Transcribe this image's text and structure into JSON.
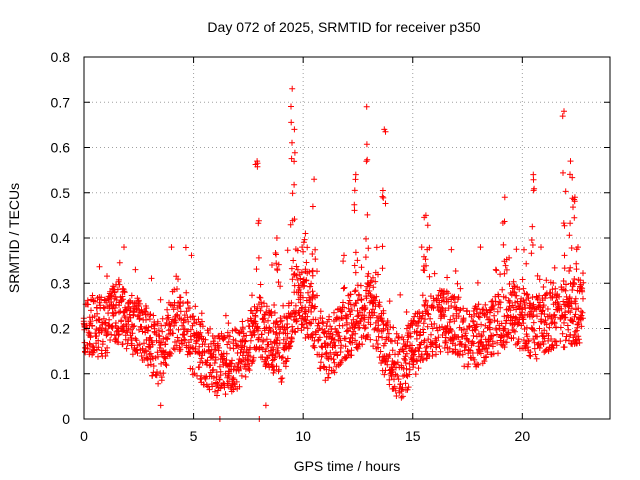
{
  "chart_data": {
    "type": "scatter",
    "title": "Day 072 of 2025, SRMTID for receiver p350",
    "xlabel": "GPS time / hours",
    "ylabel": "SRMTID / TECUs",
    "xlim": [
      0,
      24
    ],
    "ylim": [
      0,
      0.8
    ],
    "xticks": [
      0,
      5,
      10,
      15,
      20
    ],
    "yticks": [
      0,
      0.1,
      0.2,
      0.3,
      0.4,
      0.5,
      0.6,
      0.7,
      0.8
    ],
    "xtick_labels": [
      "0",
      "5",
      "10",
      "15",
      "20"
    ],
    "ytick_labels": [
      "0",
      "0.1",
      "0.2",
      "0.3",
      "0.4",
      "0.5",
      "0.6",
      "0.7",
      "0.8"
    ],
    "grid": true,
    "marker": "+",
    "color": "#ff0000",
    "series": [
      {
        "name": "SRMTID",
        "x_range": [
          0,
          22.8
        ],
        "sample_step_hours": 0.03,
        "typical_band": [
          0.05,
          0.35
        ],
        "envelope": [
          [
            0.0,
            0.21
          ],
          [
            1.0,
            0.2
          ],
          [
            1.5,
            0.24
          ],
          [
            2.5,
            0.2
          ],
          [
            3.5,
            0.14
          ],
          [
            4.0,
            0.22
          ],
          [
            4.5,
            0.22
          ],
          [
            5.0,
            0.16
          ],
          [
            6.0,
            0.12
          ],
          [
            7.0,
            0.13
          ],
          [
            8.0,
            0.2
          ],
          [
            9.0,
            0.15
          ],
          [
            9.7,
            0.27
          ],
          [
            10.5,
            0.22
          ],
          [
            11.0,
            0.15
          ],
          [
            12.0,
            0.2
          ],
          [
            13.0,
            0.25
          ],
          [
            14.0,
            0.13
          ],
          [
            14.5,
            0.11
          ],
          [
            15.5,
            0.2
          ],
          [
            16.5,
            0.22
          ],
          [
            17.5,
            0.18
          ],
          [
            18.5,
            0.19
          ],
          [
            19.5,
            0.24
          ],
          [
            20.5,
            0.2
          ],
          [
            21.5,
            0.22
          ],
          [
            22.8,
            0.24
          ]
        ],
        "peaks": [
          [
            7.9,
            0.57
          ],
          [
            9.5,
            0.73
          ],
          [
            9.6,
            0.64
          ],
          [
            10.5,
            0.53
          ],
          [
            12.4,
            0.54
          ],
          [
            12.9,
            0.69
          ],
          [
            13.7,
            0.64
          ],
          [
            15.6,
            0.45
          ],
          [
            19.2,
            0.49
          ],
          [
            20.5,
            0.54
          ],
          [
            21.9,
            0.68
          ],
          [
            22.2,
            0.57
          ],
          [
            22.4,
            0.49
          ],
          [
            8.8,
            0.4
          ],
          [
            10.1,
            0.41
          ]
        ],
        "near_zero": [
          [
            6.2,
            0.0
          ],
          [
            8.0,
            0.0
          ],
          [
            8.3,
            0.03
          ],
          [
            3.5,
            0.03
          ]
        ]
      }
    ]
  }
}
